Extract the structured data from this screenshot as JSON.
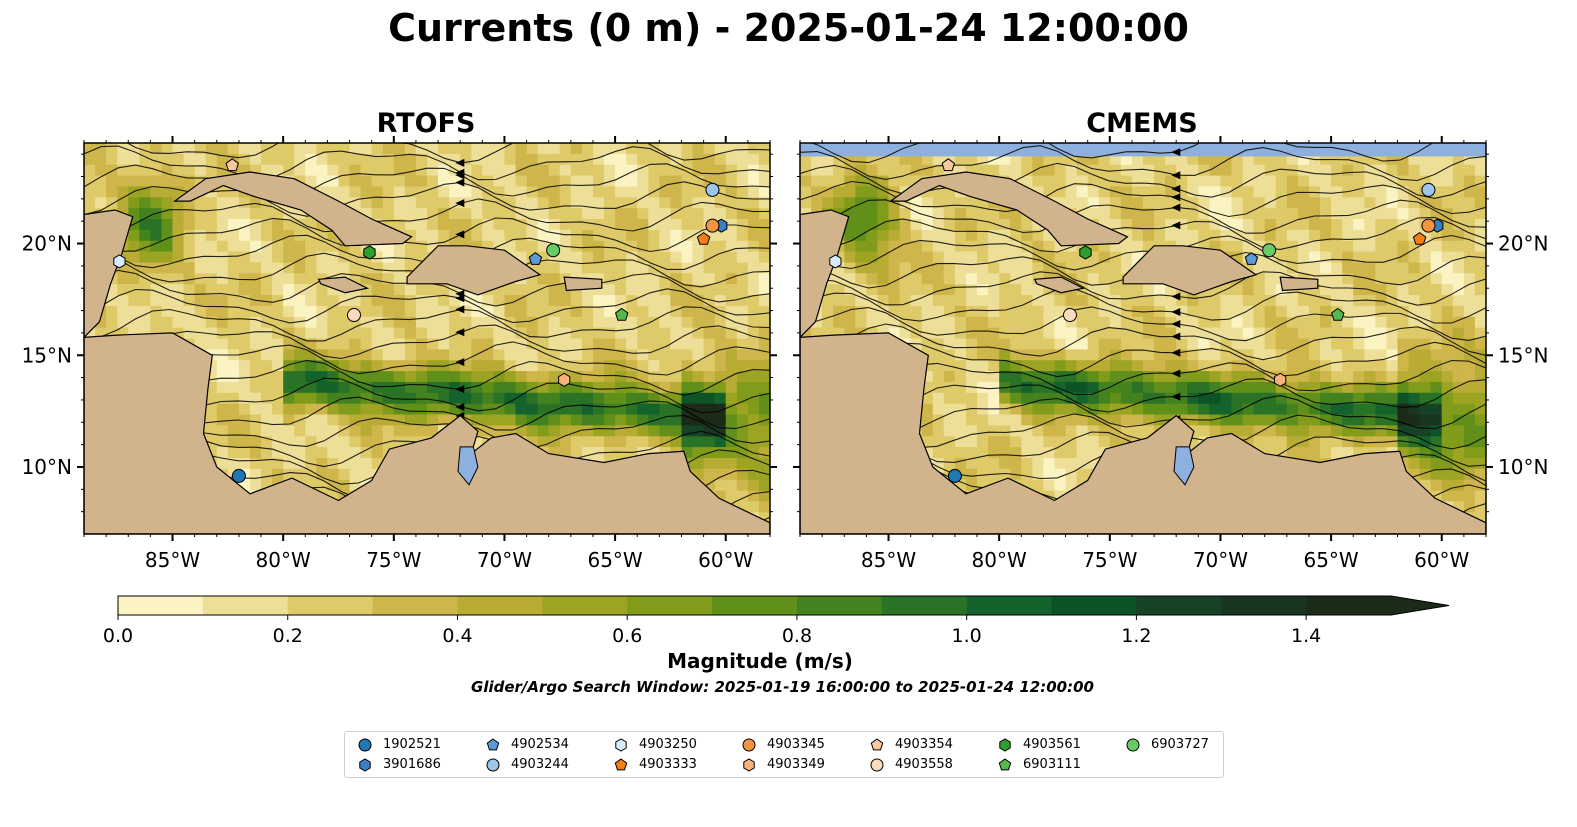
{
  "title": "Currents (0 m) - 2025-01-24 12:00:00",
  "panels": [
    {
      "id": "rtofs",
      "title": "RTOFS",
      "lat_labels_side": "left"
    },
    {
      "id": "cmems",
      "title": "CMEMS",
      "lat_labels_side": "right"
    }
  ],
  "map_extent": {
    "lon_min": -89,
    "lon_max": -58,
    "lat_min": 7,
    "lat_max": 24.5
  },
  "x_ticks": [
    "85°W",
    "80°W",
    "75°W",
    "70°W",
    "65°W",
    "60°W"
  ],
  "x_tick_values": [
    -85,
    -80,
    -75,
    -70,
    -65,
    -60
  ],
  "y_ticks": [
    "10°N",
    "15°N",
    "20°N"
  ],
  "y_tick_values": [
    10,
    15,
    20
  ],
  "colorbar": {
    "label": "Magnitude (m/s)",
    "min": 0.0,
    "max": 1.5,
    "step": 0.1,
    "extend": "max",
    "tick_labels": [
      "0.0",
      "0.2",
      "0.4",
      "0.6",
      "0.8",
      "1.0",
      "1.2",
      "1.4"
    ],
    "tick_values": [
      0.0,
      0.2,
      0.4,
      0.6,
      0.8,
      1.0,
      1.2,
      1.4
    ],
    "colors": [
      "#fbf4c2",
      "#eedf98",
      "#dfca6a",
      "#cfb64a",
      "#b8ac35",
      "#9da423",
      "#809c1a",
      "#609019",
      "#43821f",
      "#2a7226",
      "#14632d",
      "#0e5328",
      "#164325",
      "#1a3520",
      "#1c2a18"
    ]
  },
  "colors": {
    "land": "#d2b48c",
    "water": "#8eb0df",
    "edge": "#000000",
    "low": "#fbf4c2",
    "mid": "#b8ac35",
    "high": "#2a7226"
  },
  "search_window": "Glider/Argo Search Window: 2025-01-19 16:00:00 to 2025-01-24 12:00:00",
  "floats": [
    {
      "id": "1902521",
      "marker": "circle",
      "color": "#1f77b4",
      "lon": -82.0,
      "lat": 9.6
    },
    {
      "id": "3901686",
      "marker": "hexagon",
      "color": "#3a7fc1",
      "lon": -60.2,
      "lat": 20.8
    },
    {
      "id": "4902534",
      "marker": "pentagon",
      "color": "#5b9ad5",
      "lon": -68.6,
      "lat": 19.3
    },
    {
      "id": "4903244",
      "marker": "circle",
      "color": "#9ec6ea",
      "lon": -60.6,
      "lat": 22.4
    },
    {
      "id": "4903250",
      "marker": "hexagon",
      "color": "#d6ecfa",
      "lon": -87.4,
      "lat": 19.2
    },
    {
      "id": "4903333",
      "marker": "pentagon",
      "color": "#f57f17",
      "lon": -61.0,
      "lat": 20.2
    },
    {
      "id": "4903345",
      "marker": "circle",
      "color": "#f39440",
      "lon": -60.6,
      "lat": 20.8
    },
    {
      "id": "4903349",
      "marker": "hexagon",
      "color": "#f7b27a",
      "lon": -67.3,
      "lat": 13.9
    },
    {
      "id": "4903354",
      "marker": "pentagon",
      "color": "#f9c89e",
      "lon": -82.3,
      "lat": 23.5
    },
    {
      "id": "4903558",
      "marker": "circle",
      "color": "#fddcbd",
      "lon": -76.8,
      "lat": 16.8
    },
    {
      "id": "4903561",
      "marker": "hexagon",
      "color": "#2ca02c",
      "lon": -76.1,
      "lat": 19.6
    },
    {
      "id": "6903111",
      "marker": "pentagon",
      "color": "#55b84b",
      "lon": -64.7,
      "lat": 16.8
    },
    {
      "id": "6903727",
      "marker": "circle",
      "color": "#66cc66",
      "lon": -67.8,
      "lat": 19.7
    }
  ],
  "legend_order": [
    "1902521",
    "3901686",
    "4902534",
    "4903244",
    "4903250",
    "4903333",
    "4903345",
    "4903349",
    "4903354",
    "4903558",
    "4903561",
    "6903111",
    "6903727"
  ]
}
